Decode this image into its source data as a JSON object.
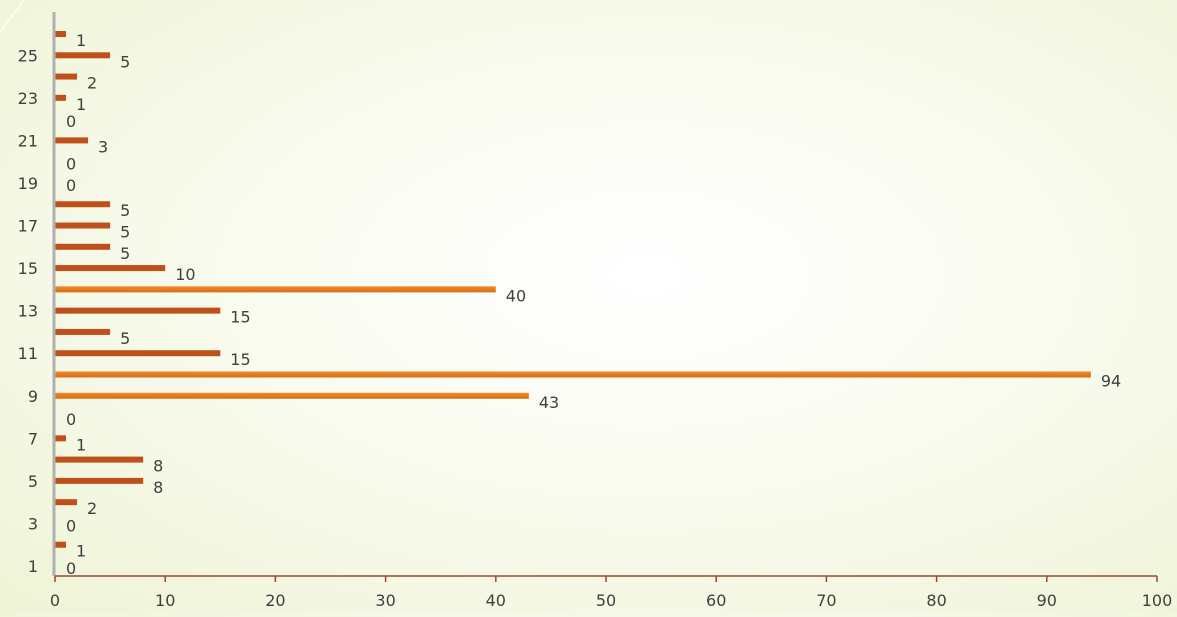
{
  "chart_data": {
    "type": "bar",
    "orientation": "horizontal",
    "categories": [
      "1",
      "2",
      "3",
      "4",
      "5",
      "6",
      "7",
      "8",
      "9",
      "10",
      "11",
      "12",
      "13",
      "14",
      "15",
      "16",
      "17",
      "18",
      "19",
      "20",
      "21",
      "22",
      "23",
      "24",
      "25",
      "26"
    ],
    "values": [
      0,
      1,
      0,
      2,
      8,
      8,
      1,
      0,
      43,
      94,
      15,
      5,
      15,
      40,
      10,
      5,
      5,
      5,
      0,
      0,
      3,
      0,
      1,
      2,
      5,
      1
    ],
    "xlim": [
      0,
      100
    ],
    "x_ticks": [
      0,
      10,
      20,
      30,
      40,
      50,
      60,
      70,
      80,
      90,
      100
    ],
    "y_tick_labels": [
      "1",
      "3",
      "5",
      "7",
      "9",
      "11",
      "13",
      "15",
      "17",
      "19",
      "21",
      "23",
      "25"
    ],
    "title": "",
    "xlabel": "",
    "ylabel": "",
    "grid": false,
    "legend": "none",
    "colors": {
      "bar": "#c0501a",
      "highlight_bar": "#e07b1f",
      "axis_x": "#a0442a",
      "axis_y": "#b0b0b0",
      "label": "#404040"
    },
    "highlighted_values": [
      43,
      94,
      40
    ]
  }
}
